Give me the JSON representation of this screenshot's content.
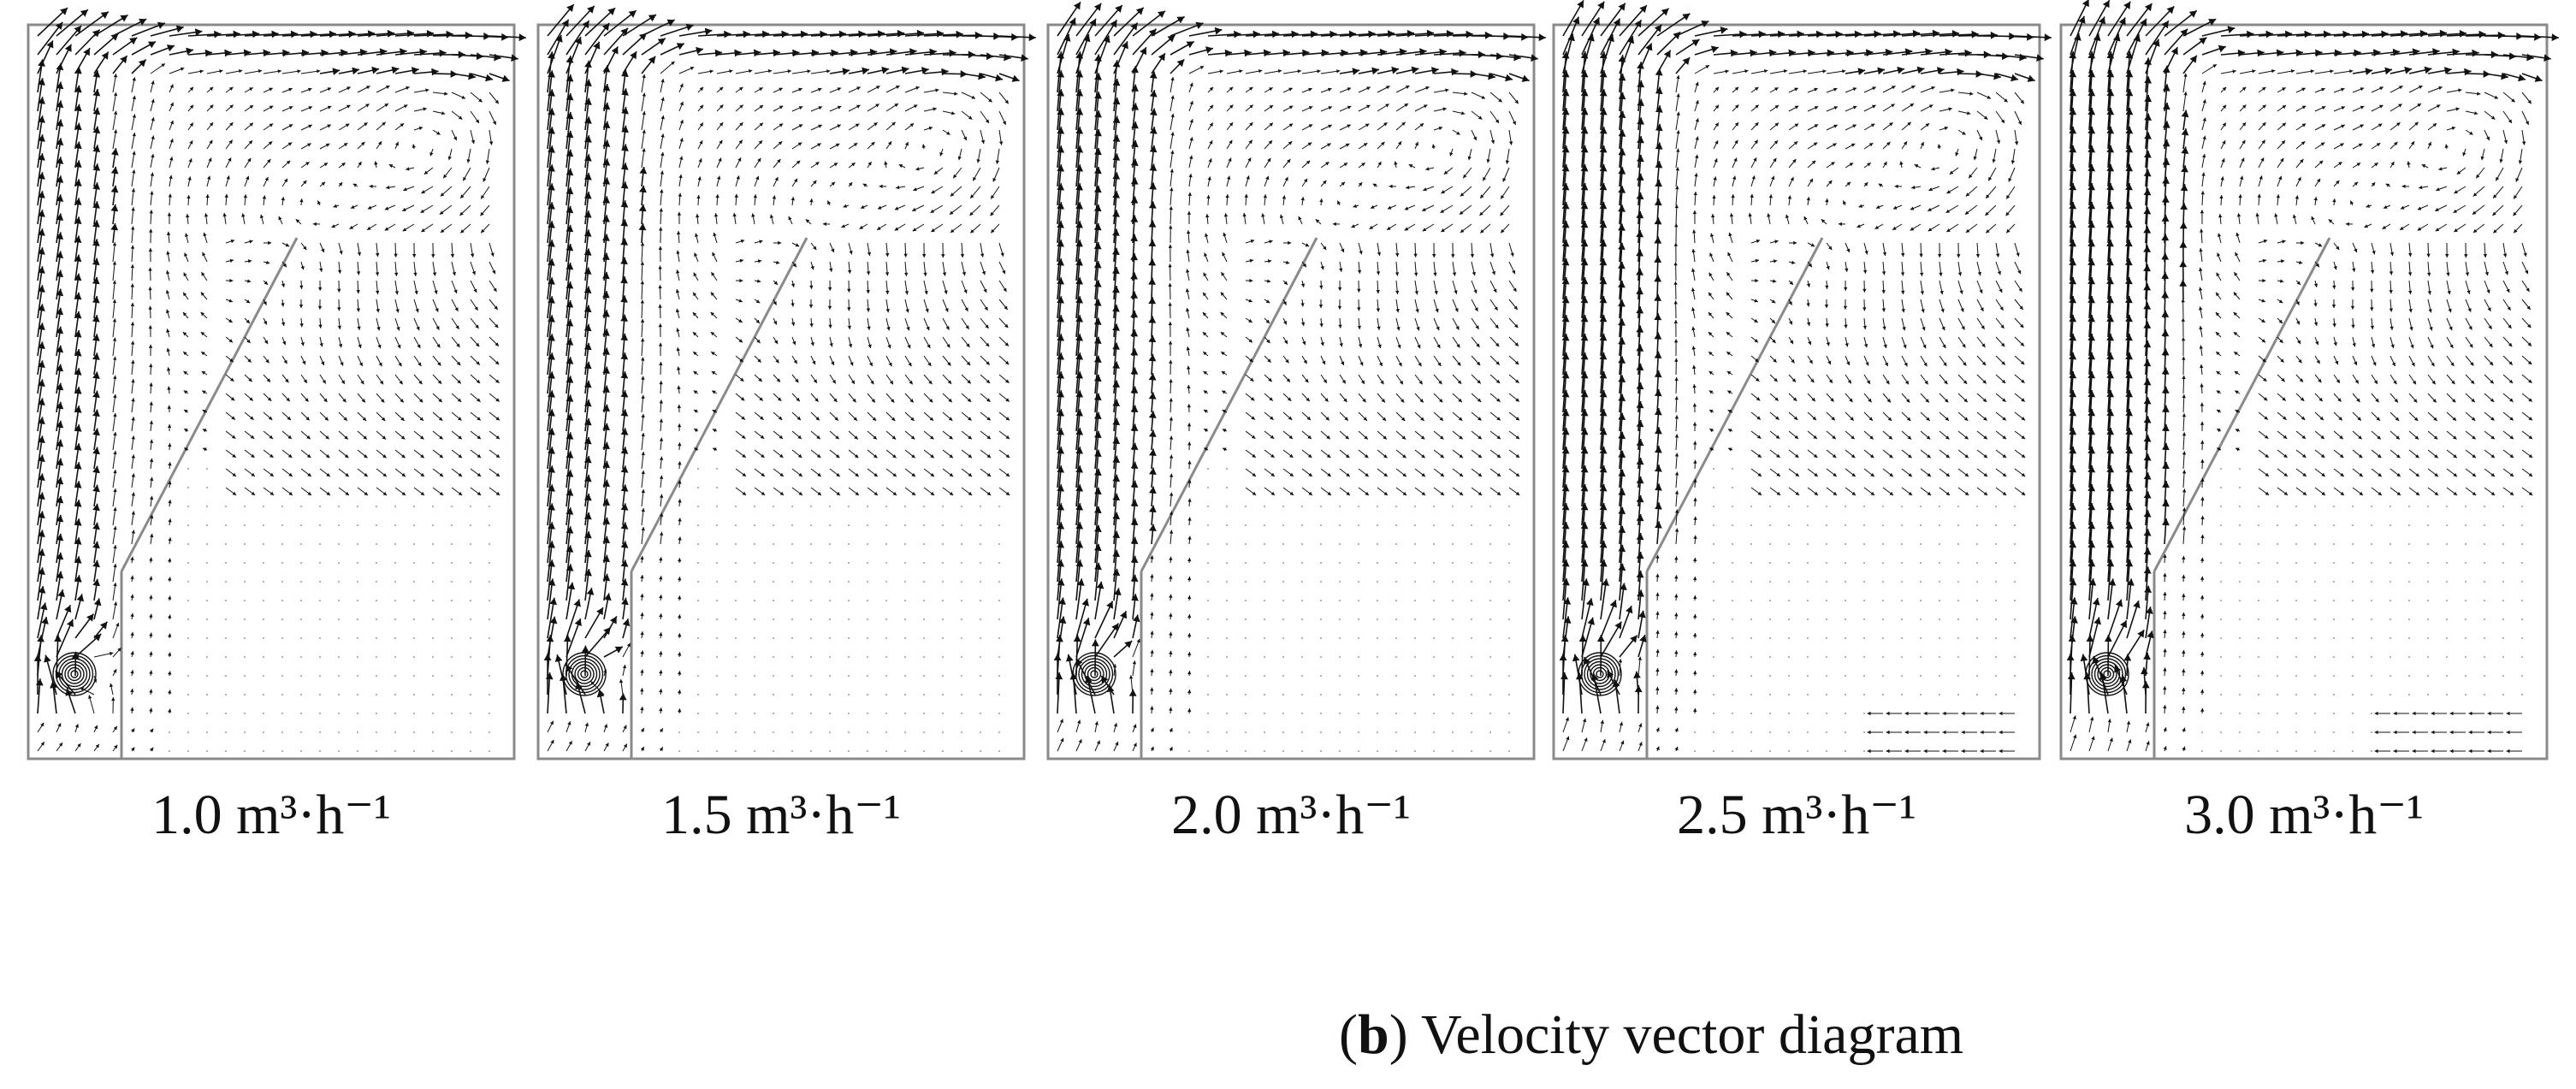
{
  "figure": {
    "caption": {
      "open_paren": "(",
      "letter": "b",
      "close_paren": ")",
      "text": " Velocity vector diagram"
    },
    "panels": [
      {
        "label": "1.0 m³·h⁻¹",
        "flow_rate": 1.0
      },
      {
        "label": "1.5 m³·h⁻¹",
        "flow_rate": 1.5
      },
      {
        "label": "2.0 m³·h⁻¹",
        "flow_rate": 2.0
      },
      {
        "label": "2.5 m³·h⁻¹",
        "flow_rate": 2.5
      },
      {
        "label": "3.0 m³·h⁻¹",
        "flow_rate": 3.0
      }
    ],
    "colors": {
      "vector": "#111111",
      "wall": "#8a8a8a",
      "background": "#ffffff"
    }
  }
}
